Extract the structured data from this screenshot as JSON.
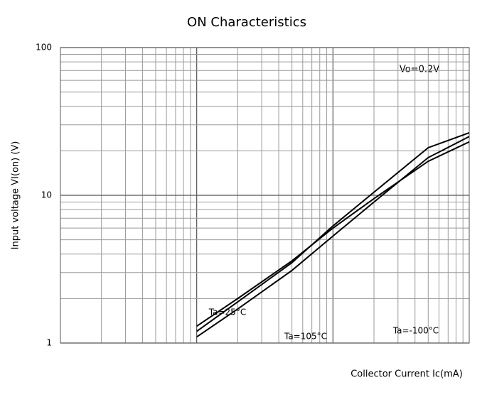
{
  "chart_data": {
    "type": "line",
    "title": "ON Characteristics",
    "xlabel": "Collector Current  Ic(mA)",
    "ylabel": "Input voltage VI(on) (V)",
    "annotation": "Vo=0.2V",
    "x": [
      1,
      2,
      5,
      10,
      20,
      50,
      100
    ],
    "series": [
      {
        "name": "Ta=25°C",
        "color": "#000000",
        "values": [
          1.3,
          2,
          3.6,
          6,
          9.5,
          17,
          23
        ]
      },
      {
        "name": "Ta=-100°C",
        "color": "#000000",
        "values": [
          1.2,
          1.9,
          3.5,
          6.2,
          10.5,
          21,
          26.5
        ]
      },
      {
        "name": "Ta=105°C",
        "color": "#000000",
        "values": [
          1.1,
          1.7,
          3.1,
          5.3,
          9,
          18,
          25
        ]
      }
    ],
    "xlim": [
      0.1,
      100
    ],
    "ylim": [
      1,
      100
    ],
    "yticks": [
      1,
      10,
      100
    ],
    "xscale": "log",
    "yscale": "log",
    "grid": true
  }
}
